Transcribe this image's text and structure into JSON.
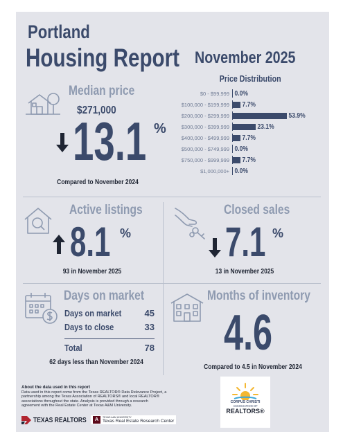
{
  "header": {
    "city": "Portland",
    "report_title": "Housing Report",
    "period": "November 2025"
  },
  "median_price": {
    "heading": "Median price",
    "value": "$271,000",
    "change": "13.1",
    "percent_sign": "%",
    "direction": "down",
    "caption": "Compared to November 2024",
    "icon": "house-tree-icon"
  },
  "chart_data": {
    "type": "bar",
    "title": "Price Distribution",
    "orientation": "horizontal",
    "categories": [
      "$0 - $99,999",
      "$100,000 - $199,999",
      "$200,000 - $299,999",
      "$300,000 - $399,999",
      "$400,000 - $499,999",
      "$500,000 - $749,999",
      "$750,000 - $999,999",
      "$1,000,000+"
    ],
    "values": [
      0.0,
      7.7,
      53.9,
      23.1,
      7.7,
      0.0,
      7.7,
      0.0
    ],
    "value_labels": [
      "0.0%",
      "7.7%",
      "53.9%",
      "23.1%",
      "7.7%",
      "0.0%",
      "7.7%",
      "0.0%"
    ],
    "color": "#3b4a6b"
  },
  "active_listings": {
    "heading": "Active listings",
    "change": "8.1",
    "percent_sign": "%",
    "direction": "up",
    "caption": "93 in November 2025",
    "icon": "house-search-icon"
  },
  "closed_sales": {
    "heading": "Closed sales",
    "change": "7.1",
    "percent_sign": "%",
    "direction": "down",
    "caption": "13 in November 2025",
    "icon": "hand-keys-icon"
  },
  "days_on_market": {
    "heading": "Days on market",
    "rows": [
      {
        "label": "Days on market",
        "value": "45"
      },
      {
        "label": "Days to close",
        "value": "33"
      }
    ],
    "total_label": "Total",
    "total_value": "78",
    "caption": "62 days less than November 2024",
    "icon": "calendar-dollar-icon"
  },
  "months_inventory": {
    "heading": "Months of inventory",
    "value": "4.6",
    "caption": "Compared to 4.5 in November 2024",
    "icon": "building-icon"
  },
  "footer": {
    "about_title": "About the data used in this report",
    "about_text": "Data used in this report come from the Texas REALTOR® Data Relevance Project, a partnership among the Texas Association of REALTORS® and local REALTOR® associations throughout the state. Analysis is provided through a research agreement with the Real Estate Center at Texas A&M University.",
    "logo_texas_realtors": "TEXAS REALTORS",
    "logo_research_small": "TEXAS A&M UNIVERSITY",
    "logo_research": "Texas Real Estate Research Center",
    "logo_ccar_line1": "CORPUS CHRISTI",
    "logo_ccar_line2": "ASSOCIATION OF",
    "logo_ccar_line3": "REALTORS"
  },
  "colors": {
    "navy": "#3b4a6b",
    "muted": "#8e9ab0",
    "background": "#e3e4ea",
    "texas_red": "#b1252f"
  }
}
